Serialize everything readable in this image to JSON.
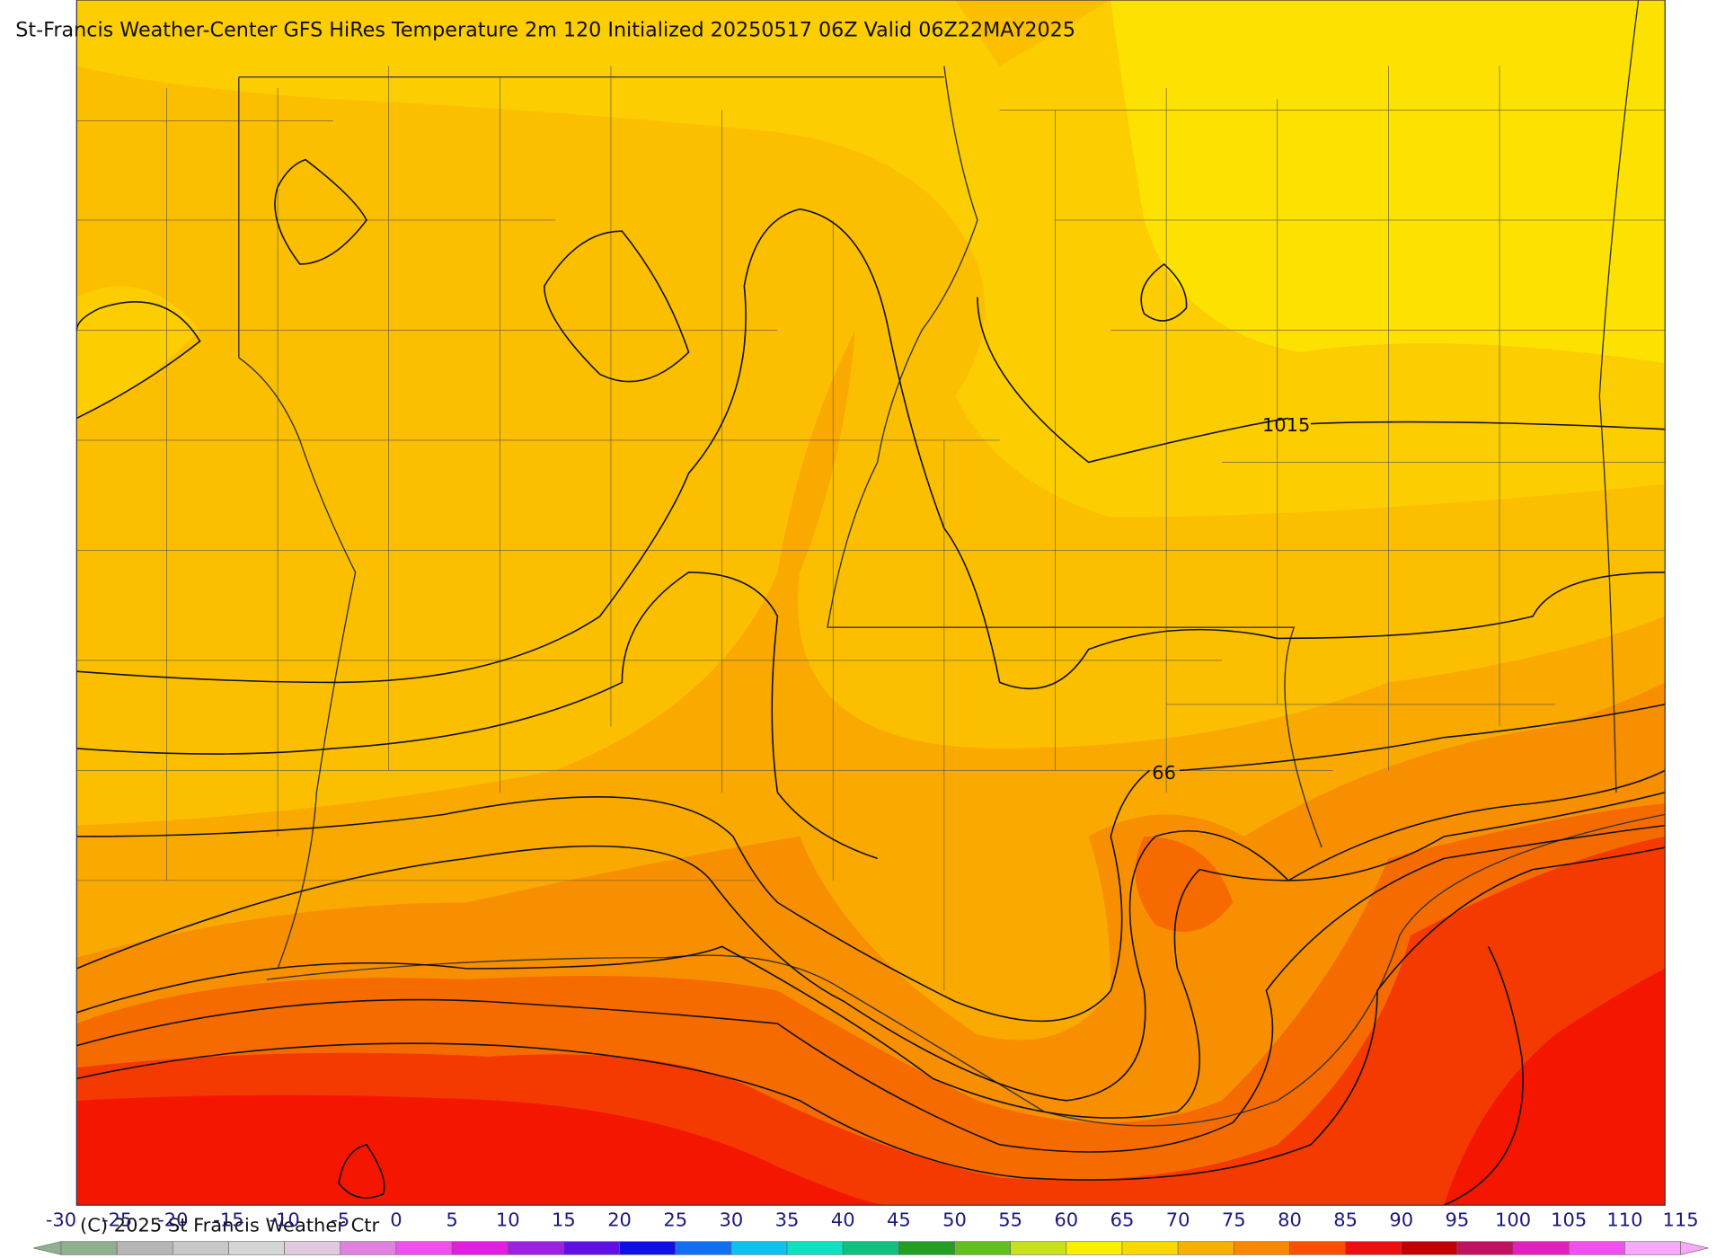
{
  "title": "St-Francis Weather-Center GFS HiRes Temperature 2m  120 Initialized 20250517 06Z Valid 06Z22MAY2025",
  "copyright": "(C) 2025 St Francis Weather Ctr",
  "contour_labels": [
    "1015",
    "66"
  ],
  "colorbar": {
    "ticks": [
      -30,
      -25,
      -20,
      -15,
      -10,
      -5,
      0,
      5,
      10,
      15,
      20,
      25,
      30,
      35,
      40,
      45,
      50,
      55,
      60,
      65,
      70,
      75,
      80,
      85,
      90,
      95,
      100,
      105,
      110,
      115
    ],
    "colors": [
      "#8fb08f",
      "#b5b5b5",
      "#c8c8c8",
      "#d5d5d5",
      "#e0c8e0",
      "#e080e0",
      "#f050f0",
      "#e020e0",
      "#a020e0",
      "#6010e0",
      "#1010e0",
      "#1070f0",
      "#10c0f0",
      "#10e0c0",
      "#10c080",
      "#20a020",
      "#60c020",
      "#c8e020",
      "#f8f000",
      "#f8d800",
      "#f8b000",
      "#f88800",
      "#f85000",
      "#e81010",
      "#c00000",
      "#c01060",
      "#e020c0",
      "#f050f0",
      "#f8a8f8"
    ]
  }
}
